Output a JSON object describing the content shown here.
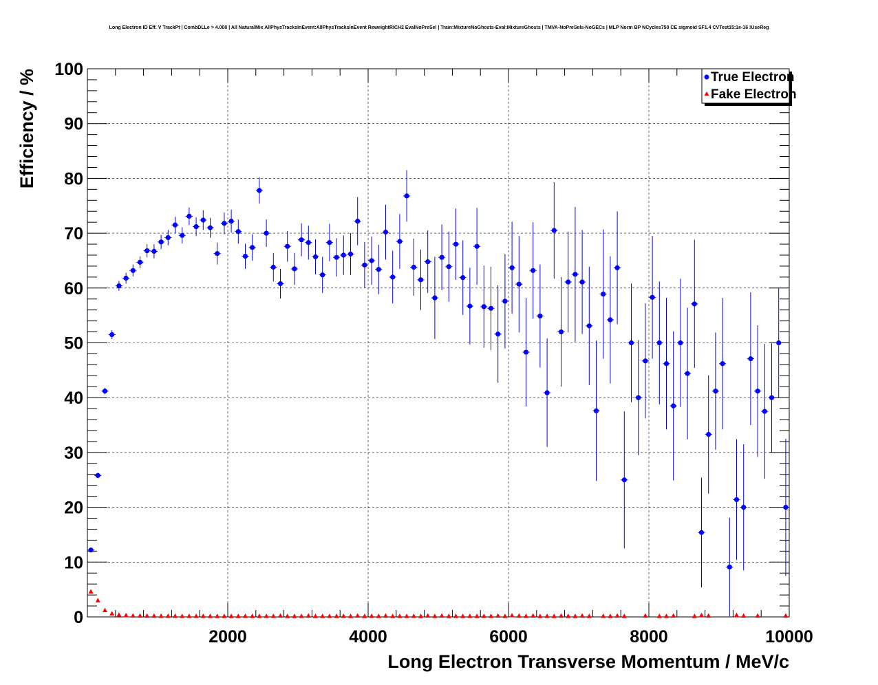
{
  "chart_data": {
    "type": "scatter",
    "title": "Long Electron ID Eff. V TrackPt | CombDLLe > 4.000 | All NaturalMix AllPhysTracksInEvent:AllPhysTracksInEvent ReweightRICH2 EvalNoPreSel | Train:MixtureNoGhosts-Eval:MixtureGhosts | TMVA-NoPreSels-NoGECs | MLP Norm BP NCycles750 CE sigmoid SF1.4 CVTest15:1e-16 !UseReg",
    "xlabel": "Long Electron Transverse Momentum / MeV/c",
    "ylabel": "Efficiency / %",
    "xlim": [
      0,
      10000
    ],
    "ylim": [
      0,
      100
    ],
    "x_ticks": [
      "2000",
      "4000",
      "6000",
      "8000",
      "10000"
    ],
    "x_tick_values": [
      2000,
      4000,
      6000,
      8000,
      10000
    ],
    "y_ticks": [
      "0",
      "10",
      "20",
      "30",
      "40",
      "50",
      "60",
      "70",
      "80",
      "90",
      "100"
    ],
    "y_tick_values": [
      0,
      10,
      20,
      30,
      40,
      50,
      60,
      70,
      80,
      90,
      100
    ],
    "grid": true,
    "legend_position": "top-right",
    "series": [
      {
        "name": "True Electron",
        "color": "#0000ff",
        "marker": "circle",
        "x": [
          50,
          150,
          250,
          350,
          450,
          550,
          650,
          750,
          850,
          950,
          1050,
          1150,
          1250,
          1350,
          1450,
          1550,
          1650,
          1750,
          1850,
          1950,
          2050,
          2150,
          2250,
          2350,
          2450,
          2550,
          2650,
          2750,
          2850,
          2950,
          3050,
          3150,
          3250,
          3350,
          3450,
          3550,
          3650,
          3750,
          3850,
          3950,
          4050,
          4150,
          4250,
          4350,
          4450,
          4550,
          4650,
          4750,
          4850,
          4950,
          5050,
          5150,
          5250,
          5350,
          5450,
          5550,
          5650,
          5750,
          5850,
          5950,
          6050,
          6150,
          6250,
          6350,
          6450,
          6550,
          6650,
          6750,
          6850,
          6950,
          7050,
          7150,
          7250,
          7350,
          7450,
          7550,
          7650,
          7750,
          7850,
          7950,
          8050,
          8150,
          8250,
          8350,
          8450,
          8550,
          8650,
          8750,
          8850,
          8950,
          9050,
          9150,
          9250,
          9350,
          9450,
          9550,
          9650,
          9750,
          9850,
          9950
        ],
        "y": [
          12.2,
          25.8,
          41.2,
          51.5,
          60.4,
          61.8,
          63.2,
          64.7,
          66.8,
          66.7,
          68.4,
          69.2,
          71.5,
          69.6,
          73.1,
          71.2,
          72.4,
          71.0,
          66.3,
          71.8,
          72.2,
          70.3,
          65.8,
          67.4,
          77.8,
          70.0,
          63.8,
          60.8,
          67.6,
          63.5,
          68.8,
          68.3,
          65.7,
          62.4,
          68.3,
          65.6,
          66.0,
          66.2,
          72.2,
          64.2,
          65.0,
          63.4,
          70.2,
          62.0,
          68.5,
          76.8,
          63.8,
          61.5,
          64.8,
          58.2,
          65.6,
          63.9,
          68.0,
          61.9,
          56.7,
          67.6,
          56.6,
          56.3,
          51.6,
          57.6,
          63.7,
          60.7,
          48.3,
          63.2,
          54.9,
          40.9,
          70.5,
          52.0,
          61.1,
          62.5,
          61.1,
          53.1,
          37.6,
          58.9,
          54.2,
          63.7,
          25.0,
          50.0,
          40.0,
          46.7,
          58.3,
          50.0,
          46.2,
          38.5,
          50.0,
          44.4,
          57.1,
          15.4,
          33.3,
          41.2,
          46.2,
          9.1,
          21.4,
          20.0,
          47.1,
          41.2,
          37.5,
          40.0,
          50.0,
          20.0
        ],
        "err": [
          0.4,
          0.5,
          0.6,
          0.8,
          0.9,
          1.0,
          1.1,
          1.1,
          1.2,
          1.3,
          1.3,
          1.4,
          1.5,
          1.5,
          1.6,
          1.7,
          1.8,
          1.8,
          2.0,
          2.0,
          2.1,
          2.2,
          2.3,
          2.4,
          2.4,
          2.5,
          2.6,
          2.7,
          2.8,
          2.9,
          3.0,
          3.1,
          3.2,
          3.3,
          3.4,
          3.5,
          3.6,
          3.8,
          4.4,
          4.2,
          4.4,
          4.5,
          5.0,
          4.8,
          5.0,
          4.7,
          5.2,
          5.5,
          5.7,
          7.5,
          6.0,
          6.4,
          6.5,
          6.8,
          7.0,
          7.0,
          7.5,
          7.6,
          8.9,
          8.6,
          8.4,
          8.8,
          9.9,
          8.8,
          9.4,
          9.9,
          8.8,
          10.0,
          9.2,
          12.3,
          9.5,
          10.8,
          12.8,
          11.8,
          11.6,
          10.3,
          12.5,
          10.8,
          10.5,
          10.5,
          11.2,
          11.2,
          12.0,
          13.6,
          11.7,
          12.0,
          11.7,
          10.0,
          10.8,
          10.7,
          12.0,
          9.0,
          11.0,
          11.5,
          12.1,
          12.0,
          12.3,
          10.0,
          10.0,
          12.5
        ]
      },
      {
        "name": "Fake Electron",
        "color": "#ff0000",
        "marker": "triangle",
        "x": [
          50,
          150,
          250,
          350,
          450,
          550,
          650,
          750,
          850,
          950,
          1050,
          1150,
          1250,
          1350,
          1450,
          1550,
          1650,
          1750,
          1850,
          1950,
          2050,
          2150,
          2250,
          2350,
          2450,
          2550,
          2650,
          2750,
          2850,
          2950,
          3050,
          3150,
          3250,
          3350,
          3450,
          3550,
          3650,
          3750,
          3850,
          3950,
          4050,
          4150,
          4250,
          4350,
          4450,
          4550,
          4650,
          4750,
          4850,
          4950,
          5050,
          5150,
          5250,
          5350,
          5450,
          5550,
          5650,
          5750,
          5850,
          5950,
          6050,
          6150,
          6250,
          6350,
          6450,
          6550,
          6650,
          6750,
          6850,
          6950,
          7050,
          7150,
          7350,
          7450,
          7550,
          7650,
          7950,
          8150,
          8250,
          8350,
          8650,
          8750,
          8850,
          9250,
          9350,
          9550,
          9950
        ],
        "y": [
          4.6,
          3.0,
          1.2,
          0.6,
          0.35,
          0.28,
          0.22,
          0.2,
          0.18,
          0.18,
          0.16,
          0.15,
          0.15,
          0.14,
          0.14,
          0.14,
          0.14,
          0.13,
          0.13,
          0.13,
          0.13,
          0.13,
          0.14,
          0.13,
          0.14,
          0.14,
          0.14,
          0.2,
          0.13,
          0.13,
          0.14,
          0.2,
          0.13,
          0.13,
          0.14,
          0.13,
          0.14,
          0.13,
          0.2,
          0.13,
          0.15,
          0.13,
          0.2,
          0.13,
          0.14,
          0.13,
          0.14,
          0.13,
          0.2,
          0.13,
          0.2,
          0.13,
          0.14,
          0.13,
          0.14,
          0.13,
          0.14,
          0.13,
          0.2,
          0.13,
          0.25,
          0.18,
          0.14,
          0.2,
          0.13,
          0.14,
          0.13,
          0.2,
          0.14,
          0.13,
          0.2,
          0.13,
          0.15,
          0.13,
          0.2,
          0.13,
          0.2,
          0.13,
          0.14,
          0.2,
          0.13,
          0.3,
          0.2,
          0.3,
          0.2,
          0.2,
          0.2
        ]
      }
    ]
  }
}
